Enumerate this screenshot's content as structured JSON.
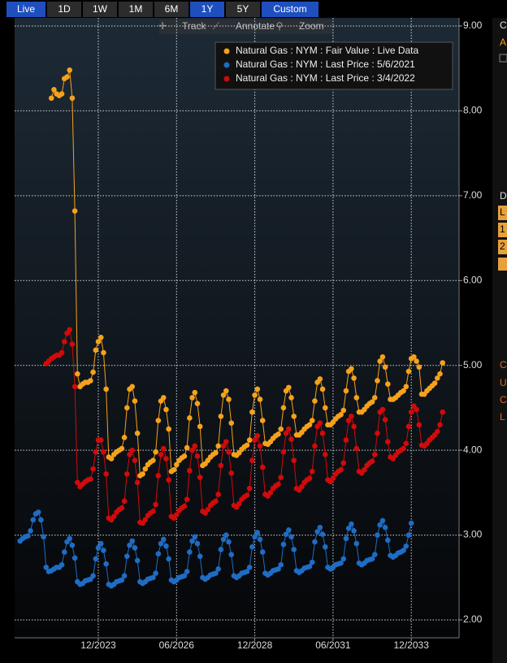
{
  "ui": {
    "range_buttons": [
      "Live",
      "1D",
      "1W",
      "1M",
      "6M",
      "1Y",
      "5Y",
      "Custom"
    ],
    "active_buttons": [
      "Live",
      "1Y",
      "Custom"
    ],
    "tools": [
      "Track",
      "Annotate",
      "Zoom"
    ],
    "side_panel": [
      "C",
      "A",
      "D",
      "L",
      "1",
      "2",
      "C",
      "U",
      "C",
      "L"
    ]
  },
  "chart_data": {
    "type": "line",
    "x": [
      "06/2021",
      "07/2021",
      "08/2021",
      "09/2021",
      "10/2021",
      "11/2021",
      "12/2021",
      "01/2022",
      "02/2022",
      "03/2022",
      "04/2022",
      "05/2022",
      "06/2022",
      "07/2022",
      "08/2022",
      "09/2022",
      "10/2022",
      "11/2022",
      "12/2022",
      "01/2023",
      "02/2023",
      "03/2023",
      "04/2023",
      "05/2023",
      "06/2023",
      "07/2023",
      "08/2023",
      "09/2023",
      "10/2023",
      "11/2023",
      "12/2023",
      "01/2024",
      "02/2024",
      "03/2024",
      "04/2024",
      "05/2024",
      "06/2024",
      "07/2024",
      "08/2024",
      "09/2024",
      "10/2024",
      "11/2024",
      "12/2024",
      "01/2025",
      "02/2025",
      "03/2025",
      "04/2025",
      "05/2025",
      "06/2025",
      "07/2025",
      "08/2025",
      "09/2025",
      "10/2025",
      "11/2025",
      "12/2025",
      "01/2026",
      "02/2026",
      "03/2026",
      "04/2026",
      "05/2026",
      "06/2026",
      "07/2026",
      "08/2026",
      "09/2026",
      "10/2026",
      "11/2026",
      "12/2026",
      "01/2027",
      "02/2027",
      "03/2027",
      "04/2027",
      "05/2027",
      "06/2027",
      "07/2027",
      "08/2027",
      "09/2027",
      "10/2027",
      "11/2027",
      "12/2027",
      "01/2028",
      "02/2028",
      "03/2028",
      "04/2028",
      "05/2028",
      "06/2028",
      "07/2028",
      "08/2028",
      "09/2028",
      "10/2028",
      "11/2028",
      "12/2028",
      "01/2029",
      "02/2029",
      "03/2029",
      "04/2029",
      "05/2029",
      "06/2029",
      "07/2029",
      "08/2029",
      "09/2029",
      "10/2029",
      "11/2029",
      "12/2029",
      "01/2030",
      "02/2030",
      "03/2030",
      "04/2030",
      "05/2030",
      "06/2030",
      "07/2030",
      "08/2030",
      "09/2030",
      "10/2030",
      "11/2030",
      "12/2030",
      "01/2031",
      "02/2031",
      "03/2031",
      "04/2031",
      "05/2031",
      "06/2031",
      "07/2031",
      "08/2031",
      "09/2031",
      "10/2031",
      "11/2031",
      "12/2031",
      "01/2032",
      "02/2032",
      "03/2032",
      "04/2032",
      "05/2032",
      "06/2032",
      "07/2032",
      "08/2032",
      "09/2032",
      "10/2032",
      "11/2032",
      "12/2032",
      "01/2033",
      "02/2033",
      "03/2033",
      "04/2033",
      "05/2033",
      "06/2033",
      "07/2033",
      "08/2033",
      "09/2033",
      "10/2033",
      "11/2033",
      "12/2033",
      "01/2034",
      "02/2034",
      "03/2034",
      "04/2034",
      "05/2034",
      "06/2034",
      "07/2034",
      "08/2034",
      "09/2034",
      "10/2034",
      "11/2034",
      "12/2034"
    ],
    "series": [
      {
        "name": "Natural Gas : NYM : Fair Value : Live Data",
        "color": "#f5a21b",
        "values": [
          null,
          null,
          null,
          null,
          null,
          null,
          null,
          null,
          null,
          null,
          null,
          null,
          8.15,
          8.25,
          8.2,
          8.18,
          8.2,
          8.38,
          8.4,
          8.48,
          8.15,
          6.82,
          4.9,
          4.75,
          4.78,
          4.8,
          4.8,
          4.82,
          4.92,
          5.18,
          5.28,
          5.33,
          5.15,
          4.72,
          3.92,
          3.9,
          3.95,
          3.98,
          4.0,
          4.02,
          4.15,
          4.5,
          4.72,
          4.75,
          4.58,
          4.2,
          3.7,
          3.72,
          3.78,
          3.83,
          3.86,
          3.88,
          3.98,
          4.35,
          4.58,
          4.62,
          4.48,
          4.25,
          3.75,
          3.77,
          3.83,
          3.88,
          3.91,
          3.93,
          4.03,
          4.38,
          4.62,
          4.68,
          4.55,
          4.28,
          3.82,
          3.84,
          3.88,
          3.92,
          3.95,
          3.97,
          4.05,
          4.4,
          4.65,
          4.7,
          4.6,
          4.32,
          3.95,
          3.94,
          3.97,
          4.01,
          4.04,
          4.06,
          4.12,
          4.45,
          4.65,
          4.72,
          4.6,
          4.35,
          4.08,
          4.07,
          4.1,
          4.14,
          4.17,
          4.19,
          4.25,
          4.5,
          4.7,
          4.74,
          4.62,
          4.4,
          4.18,
          4.18,
          4.21,
          4.25,
          4.28,
          4.3,
          4.35,
          4.58,
          4.8,
          4.84,
          4.72,
          4.5,
          4.3,
          4.3,
          4.33,
          4.37,
          4.4,
          4.42,
          4.47,
          4.7,
          4.93,
          4.96,
          4.85,
          4.62,
          4.45,
          4.45,
          4.48,
          4.52,
          4.55,
          4.57,
          4.62,
          4.82,
          5.05,
          5.1,
          4.98,
          4.78,
          4.6,
          4.6,
          4.62,
          4.65,
          4.68,
          4.7,
          4.75,
          4.93,
          5.08,
          5.1,
          5.05,
          4.98,
          4.66,
          4.66,
          4.7,
          4.73,
          4.76,
          4.79,
          4.85,
          4.9,
          5.03
        ]
      },
      {
        "name": "Natural Gas : NYM : Last Price : 5/6/2021",
        "color": "#1f6cc4",
        "values": [
          2.93,
          2.96,
          2.98,
          2.99,
          3.05,
          3.18,
          3.25,
          3.27,
          3.18,
          2.98,
          2.62,
          2.57,
          2.58,
          2.6,
          2.62,
          2.62,
          2.65,
          2.8,
          2.92,
          2.96,
          2.88,
          2.73,
          2.45,
          2.42,
          2.43,
          2.46,
          2.47,
          2.48,
          2.52,
          2.72,
          2.85,
          2.9,
          2.82,
          2.66,
          2.42,
          2.4,
          2.42,
          2.45,
          2.46,
          2.47,
          2.52,
          2.75,
          2.88,
          2.93,
          2.85,
          2.7,
          2.45,
          2.43,
          2.45,
          2.48,
          2.49,
          2.5,
          2.55,
          2.78,
          2.9,
          2.95,
          2.87,
          2.72,
          2.47,
          2.45,
          2.47,
          2.5,
          2.51,
          2.52,
          2.57,
          2.8,
          2.93,
          2.98,
          2.9,
          2.75,
          2.5,
          2.48,
          2.5,
          2.53,
          2.54,
          2.55,
          2.6,
          2.83,
          2.95,
          3.0,
          2.92,
          2.77,
          2.52,
          2.5,
          2.52,
          2.55,
          2.56,
          2.57,
          2.62,
          2.86,
          2.98,
          3.03,
          2.95,
          2.8,
          2.55,
          2.53,
          2.55,
          2.58,
          2.59,
          2.6,
          2.65,
          2.89,
          3.01,
          3.06,
          2.98,
          2.83,
          2.58,
          2.56,
          2.58,
          2.61,
          2.62,
          2.63,
          2.68,
          2.92,
          3.04,
          3.09,
          3.01,
          2.86,
          2.62,
          2.6,
          2.62,
          2.65,
          2.66,
          2.67,
          2.72,
          2.96,
          3.08,
          3.13,
          3.05,
          2.9,
          2.67,
          2.65,
          2.67,
          2.7,
          2.71,
          2.72,
          2.77,
          3.0,
          3.12,
          3.17,
          3.09,
          2.94,
          2.76,
          2.74,
          2.76,
          2.79,
          2.8,
          2.82,
          2.87,
          3.0,
          3.14,
          null,
          null,
          null,
          null,
          null,
          null,
          null,
          null,
          null,
          null,
          null,
          null
        ]
      },
      {
        "name": "Natural Gas : NYM : Last Price : 3/4/2022",
        "color": "#d10a0a",
        "values": [
          null,
          null,
          null,
          null,
          null,
          null,
          null,
          null,
          null,
          null,
          5.02,
          5.05,
          5.08,
          5.1,
          5.12,
          5.12,
          5.15,
          5.28,
          5.38,
          5.42,
          5.25,
          4.75,
          3.62,
          3.57,
          3.6,
          3.63,
          3.65,
          3.66,
          3.78,
          3.98,
          4.12,
          4.12,
          3.98,
          3.72,
          3.2,
          3.18,
          3.22,
          3.27,
          3.3,
          3.32,
          3.4,
          3.72,
          3.95,
          4.0,
          3.88,
          3.62,
          3.15,
          3.14,
          3.18,
          3.23,
          3.26,
          3.28,
          3.36,
          3.7,
          3.95,
          4.02,
          3.9,
          3.65,
          3.22,
          3.2,
          3.24,
          3.29,
          3.32,
          3.34,
          3.42,
          3.76,
          4.0,
          4.05,
          3.93,
          3.68,
          3.28,
          3.26,
          3.3,
          3.35,
          3.38,
          3.4,
          3.48,
          3.82,
          4.05,
          4.1,
          3.98,
          3.73,
          3.35,
          3.33,
          3.37,
          3.42,
          3.45,
          3.47,
          3.55,
          3.88,
          4.12,
          4.17,
          4.05,
          3.8,
          3.48,
          3.46,
          3.5,
          3.55,
          3.58,
          3.6,
          3.68,
          3.98,
          4.2,
          4.25,
          4.13,
          3.88,
          3.55,
          3.53,
          3.57,
          3.62,
          3.65,
          3.67,
          3.75,
          4.05,
          4.28,
          4.32,
          4.2,
          3.95,
          3.65,
          3.63,
          3.67,
          3.72,
          3.75,
          3.77,
          3.85,
          4.12,
          4.35,
          4.4,
          4.28,
          4.02,
          3.75,
          3.73,
          3.77,
          3.82,
          3.85,
          3.87,
          3.95,
          4.2,
          4.45,
          4.48,
          4.36,
          4.1,
          3.92,
          3.9,
          3.94,
          3.98,
          4.0,
          4.02,
          4.08,
          4.28,
          4.45,
          4.52,
          4.48,
          4.3,
          4.06,
          4.05,
          4.08,
          4.12,
          4.15,
          4.18,
          4.22,
          4.3,
          4.45
        ]
      }
    ],
    "ylim": [
      1.9,
      9.1
    ],
    "yticks": [
      {
        "value": 2,
        "label": "2.00"
      },
      {
        "value": 3,
        "label": "3.00"
      },
      {
        "value": 4,
        "label": "4.00"
      },
      {
        "value": 5,
        "label": "5.00"
      },
      {
        "value": 6,
        "label": "6.00"
      },
      {
        "value": 7,
        "label": "7.00"
      },
      {
        "value": 8,
        "label": "8.00"
      },
      {
        "value": 9,
        "label": "9.00"
      }
    ],
    "xticks": [
      "12/2023",
      "06/2026",
      "12/2028",
      "06/2031",
      "12/2033"
    ],
    "grid": true,
    "legend": "top-right"
  }
}
